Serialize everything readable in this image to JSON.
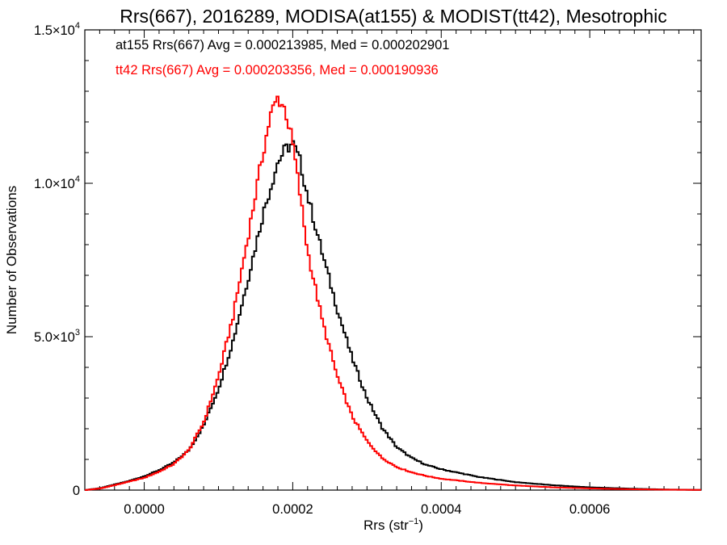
{
  "chart_data": {
    "type": "line",
    "title": "Rrs(667), 2016289, MODISA(at155) & MODIST(tt42), Mesotrophic",
    "xlabel": "Rrs (str",
    "xlabel_sup": "−1",
    "xlabel_close": ")",
    "ylabel": "Number of Observations",
    "xlim": [
      -8e-05,
      0.00075
    ],
    "ylim": [
      0,
      15000
    ],
    "x_ticks": [
      {
        "value": 0.0,
        "label": "0.0000"
      },
      {
        "value": 0.0002,
        "label": "0.0002"
      },
      {
        "value": 0.0004,
        "label": "0.0004"
      },
      {
        "value": 0.0006,
        "label": "0.0006"
      }
    ],
    "y_ticks": [
      {
        "value": 0,
        "label": "0",
        "exp": ""
      },
      {
        "value": 5000,
        "label": "5.0×10",
        "exp": "3"
      },
      {
        "value": 10000,
        "label": "1.0×10",
        "exp": "4"
      },
      {
        "value": 15000,
        "label": "1.5×10",
        "exp": "4"
      }
    ],
    "grid": false,
    "series": [
      {
        "name": "at155",
        "color": "#000000",
        "annotation": "at155 Rrs(667) Avg = 0.000213985, Med = 0.000202901",
        "x": [
          -8e-05,
          -6e-05,
          -4e-05,
          -2e-05,
          0.0,
          2e-05,
          4e-05,
          6e-05,
          8e-05,
          0.0001,
          0.00012,
          0.00014,
          0.00016,
          0.00018,
          0.00019,
          0.0002,
          0.00021,
          0.00022,
          0.00024,
          0.00026,
          0.00028,
          0.0003,
          0.00032,
          0.00034,
          0.00036,
          0.00038,
          0.0004,
          0.00045,
          0.0005,
          0.00055,
          0.0006,
          0.00065,
          0.0007,
          0.00075
        ],
        "y": [
          0,
          60,
          180,
          300,
          450,
          650,
          900,
          1300,
          2100,
          3300,
          4900,
          6900,
          9000,
          10700,
          11100,
          11300,
          10700,
          9600,
          7700,
          5900,
          4300,
          3000,
          2050,
          1400,
          1050,
          820,
          680,
          430,
          260,
          160,
          90,
          50,
          20,
          5
        ]
      },
      {
        "name": "tt42",
        "color": "#ff0000",
        "annotation": "tt42 Rrs(667) Avg = 0.000203356, Med = 0.000190936",
        "x": [
          -8e-05,
          -6e-05,
          -4e-05,
          -2e-05,
          0.0,
          2e-05,
          4e-05,
          6e-05,
          8e-05,
          0.0001,
          0.00012,
          0.00014,
          0.00016,
          0.00017,
          0.00018,
          0.00019,
          0.0002,
          0.00021,
          0.00022,
          0.00024,
          0.00026,
          0.00028,
          0.0003,
          0.00032,
          0.00034,
          0.00036,
          0.00038,
          0.0004,
          0.00045,
          0.0005,
          0.00055,
          0.0006,
          0.00065,
          0.0007,
          0.00075
        ],
        "y": [
          0,
          50,
          160,
          280,
          400,
          600,
          850,
          1300,
          2200,
          3700,
          5700,
          8300,
          11000,
          12200,
          12800,
          12400,
          11300,
          9600,
          7800,
          5500,
          3700,
          2400,
          1600,
          1050,
          750,
          580,
          460,
          370,
          240,
          150,
          90,
          55,
          30,
          15,
          5
        ]
      }
    ]
  }
}
